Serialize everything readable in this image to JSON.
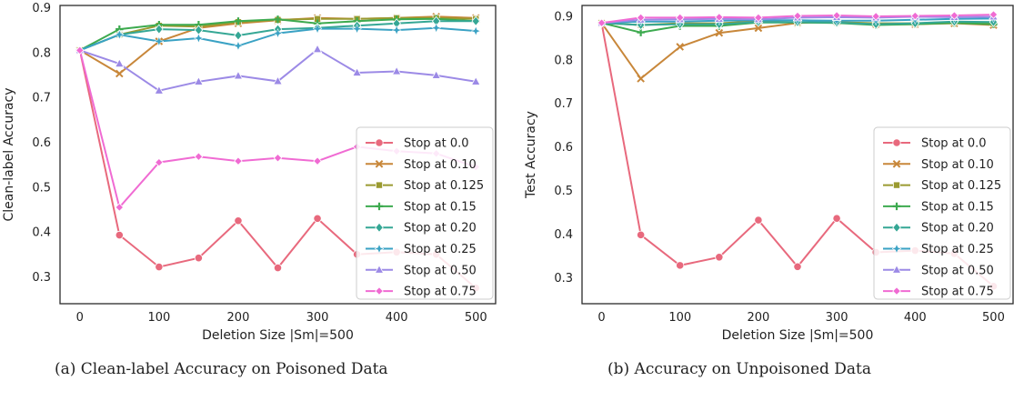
{
  "captions": {
    "a": "(a) Clean-label Accuracy on Poisoned Data",
    "b": "(b) Accuracy on Unpoisoned Data"
  },
  "chart_data": [
    {
      "type": "line",
      "xlabel": "Deletion Size |Sm|=500",
      "ylabel": "Clean-label Accuracy",
      "xlim": [
        -25,
        525
      ],
      "ylim": [
        0.24,
        0.905
      ],
      "xticks": [
        0,
        100,
        200,
        300,
        400,
        500
      ],
      "yticks": [
        0.3,
        0.4,
        0.5,
        0.6,
        0.7,
        0.8,
        0.9
      ],
      "ytick_labels": [
        "0.3",
        "0.4",
        "0.5",
        "0.6",
        "0.7",
        "0.8",
        "0.9"
      ],
      "grid": false,
      "legend_position": "lower-right",
      "x": [
        0,
        50,
        100,
        150,
        200,
        250,
        300,
        350,
        400,
        450,
        500
      ],
      "series": [
        {
          "name": "Stop at 0.0",
          "color": "#e8697d",
          "marker": "circle",
          "values": [
            0.805,
            0.393,
            0.322,
            0.342,
            0.425,
            0.32,
            0.43,
            0.35,
            0.355,
            0.35,
            0.275
          ]
        },
        {
          "name": "Stop at 0.10",
          "color": "#c8873a",
          "marker": "x",
          "values": [
            0.805,
            0.753,
            0.825,
            0.855,
            0.865,
            0.872,
            0.877,
            0.875,
            0.877,
            0.88,
            0.877
          ]
        },
        {
          "name": "Stop at 0.125",
          "color": "#9a9a30",
          "marker": "square",
          "values": [
            0.805,
            0.84,
            0.86,
            0.858,
            0.868,
            0.873,
            0.875,
            0.875,
            0.877,
            0.877,
            0.875
          ]
        },
        {
          "name": "Stop at 0.15",
          "color": "#3daa4f",
          "marker": "plus",
          "values": [
            0.805,
            0.852,
            0.862,
            0.862,
            0.87,
            0.874,
            0.865,
            0.87,
            0.874,
            0.875,
            0.87
          ]
        },
        {
          "name": "Stop at 0.20",
          "color": "#35a795",
          "marker": "diamond",
          "values": [
            0.805,
            0.84,
            0.852,
            0.85,
            0.838,
            0.852,
            0.855,
            0.86,
            0.865,
            0.87,
            0.87
          ]
        },
        {
          "name": "Stop at 0.25",
          "color": "#3aa2c4",
          "marker": "star",
          "values": [
            0.805,
            0.84,
            0.825,
            0.832,
            0.815,
            0.843,
            0.853,
            0.853,
            0.85,
            0.855,
            0.848
          ]
        },
        {
          "name": "Stop at 0.50",
          "color": "#9c8ae6",
          "marker": "triangle",
          "values": [
            0.805,
            0.775,
            0.715,
            0.735,
            0.748,
            0.736,
            0.807,
            0.755,
            0.758,
            0.749,
            0.735
          ]
        },
        {
          "name": "Stop at 0.75",
          "color": "#f06bd3",
          "marker": "xs",
          "values": [
            0.805,
            0.455,
            0.555,
            0.568,
            0.558,
            0.565,
            0.558,
            0.59,
            0.58,
            0.575,
            0.545
          ]
        }
      ]
    },
    {
      "type": "line",
      "xlabel": "Deletion Size |Sm|=500",
      "ylabel": "Test Accuracy",
      "xlim": [
        -25,
        525
      ],
      "ylim": [
        0.24,
        0.925
      ],
      "xticks": [
        0,
        100,
        200,
        300,
        400,
        500
      ],
      "yticks": [
        0.3,
        0.4,
        0.5,
        0.6,
        0.7,
        0.8,
        0.9
      ],
      "ytick_labels": [
        "0.3",
        "0.4",
        "0.5",
        "0.6",
        "0.7",
        "0.8",
        "0.9"
      ],
      "grid": false,
      "legend_position": "lower-right",
      "x": [
        0,
        50,
        100,
        150,
        200,
        250,
        300,
        350,
        400,
        450,
        500
      ],
      "series": [
        {
          "name": "Stop at 0.0",
          "color": "#e8697d",
          "marker": "circle",
          "values": [
            0.885,
            0.398,
            0.328,
            0.347,
            0.432,
            0.325,
            0.436,
            0.358,
            0.362,
            0.355,
            0.28
          ]
        },
        {
          "name": "Stop at 0.10",
          "color": "#c8873a",
          "marker": "x",
          "values": [
            0.885,
            0.757,
            0.83,
            0.862,
            0.873,
            0.885,
            0.887,
            0.882,
            0.882,
            0.884,
            0.88
          ]
        },
        {
          "name": "Stop at 0.125",
          "color": "#9a9a30",
          "marker": "square",
          "values": [
            0.885,
            0.88,
            0.884,
            0.884,
            0.889,
            0.886,
            0.887,
            0.884,
            0.884,
            0.887,
            0.884
          ]
        },
        {
          "name": "Stop at 0.15",
          "color": "#3daa4f",
          "marker": "plus",
          "values": [
            0.885,
            0.863,
            0.878,
            0.878,
            0.886,
            0.886,
            0.885,
            0.88,
            0.882,
            0.885,
            0.882
          ]
        },
        {
          "name": "Stop at 0.20",
          "color": "#35a795",
          "marker": "diamond",
          "values": [
            0.885,
            0.88,
            0.882,
            0.882,
            0.887,
            0.887,
            0.886,
            0.882,
            0.884,
            0.888,
            0.887
          ]
        },
        {
          "name": "Stop at 0.25",
          "color": "#3aa2c4",
          "marker": "star",
          "values": [
            0.885,
            0.888,
            0.888,
            0.89,
            0.891,
            0.891,
            0.89,
            0.89,
            0.892,
            0.894,
            0.895
          ]
        },
        {
          "name": "Stop at 0.50",
          "color": "#9c8ae6",
          "marker": "triangle",
          "values": [
            0.885,
            0.892,
            0.893,
            0.894,
            0.893,
            0.897,
            0.898,
            0.897,
            0.899,
            0.898,
            0.899
          ]
        },
        {
          "name": "Stop at 0.75",
          "color": "#f06bd3",
          "marker": "xs",
          "values": [
            0.885,
            0.897,
            0.897,
            0.898,
            0.897,
            0.901,
            0.902,
            0.9,
            0.901,
            0.902,
            0.904
          ]
        }
      ]
    }
  ]
}
